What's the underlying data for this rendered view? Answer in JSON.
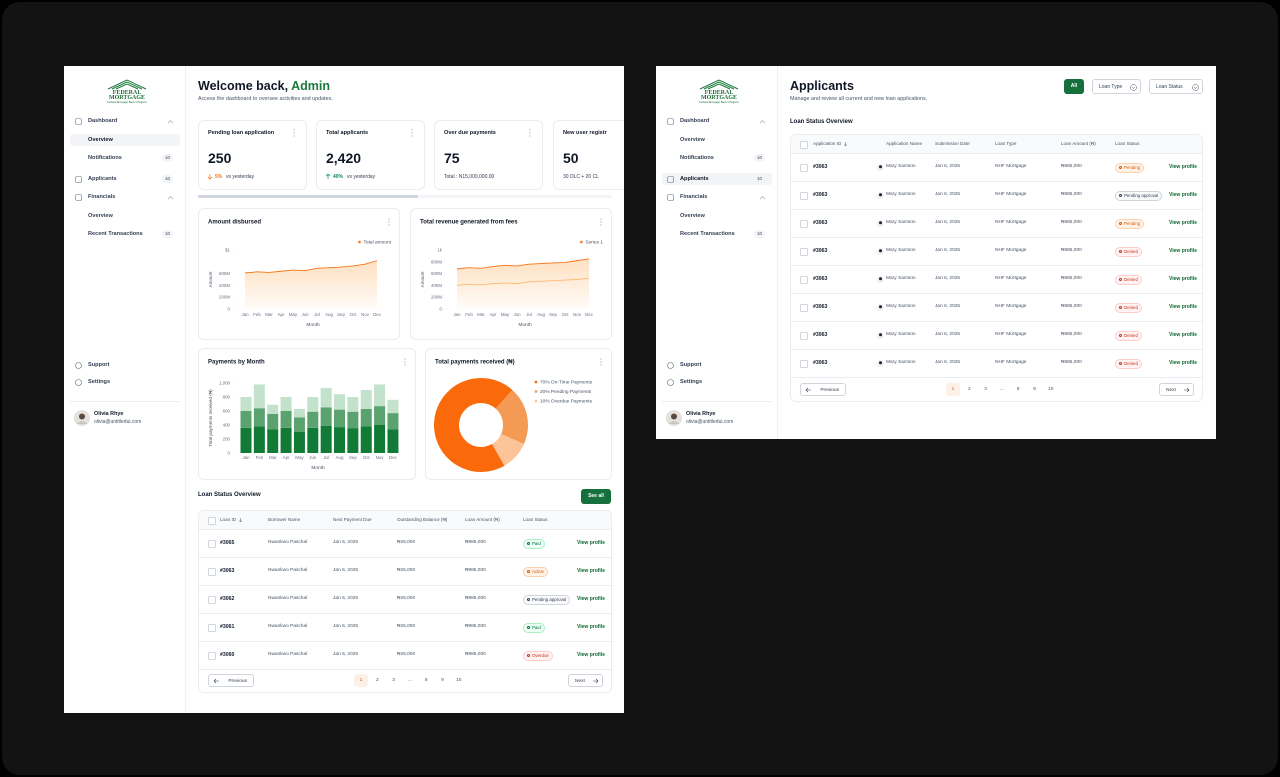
{
  "sidebar": {
    "logo": {
      "line1": "FEDERAL",
      "line2": "MORTGAGE",
      "tagline": "Federal Mortgage Bank of Nigeria"
    },
    "nav": [
      {
        "label": "Dashboard",
        "expanded": true
      },
      {
        "label": "Overview",
        "sub": true
      },
      {
        "label": "Notifications",
        "sub": true,
        "badge": 10
      },
      {
        "label": "Applicants",
        "badge": 10
      },
      {
        "label": "Financials",
        "expanded": true
      },
      {
        "label": "Overview",
        "sub": true
      },
      {
        "label": "Recent Transactions",
        "sub": true,
        "badge": 10
      }
    ],
    "footer_nav": [
      "Support",
      "Settings"
    ],
    "user": {
      "name": "Olivia Rhye",
      "email": "olivia@untitledui.com"
    }
  },
  "dashboard": {
    "active_nav": 1,
    "header": {
      "greeting": "Welcome back, ",
      "name": "Admin",
      "subtitle": "Access the dashboard to oversee activities and updates."
    },
    "stats": [
      {
        "label": "Pending loan application",
        "value": "250",
        "change": "5%",
        "trend": "down",
        "note": "vs yesterday"
      },
      {
        "label": "Total applicants",
        "value": "2,420",
        "change": "40%",
        "trend": "up",
        "note": "vs yesterday"
      },
      {
        "label": "Over due payments",
        "value": "75",
        "note": "Total : N15,000,000.00"
      },
      {
        "label": "New user registr",
        "value": "50",
        "note": "30 DLC  + 20 CL"
      }
    ],
    "amount_chart": {
      "type": "line",
      "title": "Amount disbursed",
      "ylabel": "Amount",
      "xlabel": "Month",
      "categories": [
        "Jan",
        "Feb",
        "Mar",
        "Apr",
        "May",
        "Jun",
        "Jul",
        "Aug",
        "Sep",
        "Oct",
        "Nov",
        "Dec"
      ],
      "ylim": [
        0,
        1000
      ],
      "yticks": [
        0,
        {
          "value": 200,
          "label": "200M"
        },
        {
          "value": 400,
          "label": "400M"
        },
        {
          "value": 600,
          "label": "600M"
        },
        {
          "value": 1000,
          "label": "$1"
        }
      ],
      "series": [
        {
          "name": "Total amount",
          "color": "#f97316",
          "area": true,
          "values": [
            610,
            630,
            620,
            640,
            660,
            650,
            690,
            700,
            710,
            730,
            760,
            820
          ]
        }
      ]
    },
    "revenue_chart": {
      "type": "line",
      "title": "Total revenue generated from fees",
      "ylabel": "Amount",
      "xlabel": "Month",
      "categories": [
        "Jan",
        "Feb",
        "Mar",
        "Apr",
        "May",
        "Jun",
        "Jul",
        "Aug",
        "Sep",
        "Oct",
        "Nov",
        "Dec"
      ],
      "ylim": [
        0,
        1000
      ],
      "yticks": [
        0,
        {
          "value": 200,
          "label": "200M"
        },
        {
          "value": 400,
          "label": "400M"
        },
        {
          "value": 600,
          "label": "600M"
        },
        {
          "value": 800,
          "label": "800M"
        },
        {
          "value": 1000,
          "label": "1k"
        }
      ],
      "series": [
        {
          "name": "Series 1",
          "color": "#f97316",
          "area": true,
          "values": [
            680,
            700,
            690,
            720,
            740,
            730,
            760,
            770,
            780,
            790,
            820,
            850
          ]
        },
        {
          "color": "#fdba74",
          "values": [
            400,
            420,
            410,
            430,
            440,
            430,
            460,
            470,
            480,
            490,
            500,
            520
          ]
        }
      ]
    },
    "payments_chart": {
      "type": "bar",
      "stacked": true,
      "title": "Payments by Month",
      "ylabel": "Total payments received (₦)",
      "xlabel": "Month",
      "categories": [
        "Jan",
        "Feb",
        "Mar",
        "Apr",
        "May",
        "Jun",
        "Jul",
        "Aug",
        "Sep",
        "Oct",
        "Nov",
        "Dec"
      ],
      "ylim": [
        0,
        1000
      ],
      "yticks": [
        0,
        200,
        400,
        600,
        800,
        {
          "value": 1000,
          "label": "1,000"
        }
      ],
      "series": [
        {
          "color": "#117a35",
          "values": [
            360,
            380,
            340,
            360,
            300,
            360,
            390,
            370,
            350,
            380,
            400,
            340
          ]
        },
        {
          "color": "#5aa36e",
          "values": [
            240,
            260,
            220,
            240,
            210,
            230,
            260,
            250,
            240,
            250,
            270,
            230
          ]
        },
        {
          "color": "#c3e2cb",
          "values": [
            200,
            340,
            130,
            200,
            120,
            210,
            280,
            220,
            210,
            270,
            310,
            190
          ]
        }
      ]
    },
    "donut_chart": {
      "type": "pie",
      "donut": true,
      "title": "Total payments received (₦)",
      "labels": [
        "70% On-Time Payments",
        "20% Pending Payments",
        "10% Overdue Payments"
      ],
      "values": [
        70,
        20,
        10
      ],
      "colors": [
        "#fb6a0a",
        "#f59a55",
        "#fdc49a"
      ]
    },
    "loan_table": {
      "title": "Loan Status Overview",
      "action": "See all",
      "columns": [
        "Loan ID",
        "Borrower Name",
        "Next Payment Due",
        "Outstanding Balance (₦)",
        "Loan Amount (₦)",
        "Loan Status"
      ],
      "rows": [
        {
          "cells": [
            "#3065",
            "Nwankwo Paschal",
            "Jan 6, 2025",
            "₦25,000",
            "₦985,000"
          ],
          "status": {
            "label": "Paid",
            "tone": "success"
          }
        },
        {
          "cells": [
            "#3063",
            "Nwankwo Paschal",
            "Jan 6, 2025",
            "₦25,000",
            "₦985,000"
          ],
          "status": {
            "label": "Active",
            "tone": "warning"
          }
        },
        {
          "cells": [
            "#3062",
            "Nwankwo Paschal",
            "Jan 6, 2025",
            "₦25,000",
            "₦985,000"
          ],
          "status": {
            "label": "Pending approval",
            "tone": "neutral"
          }
        },
        {
          "cells": [
            "#3061",
            "Nwankwo Paschal",
            "Jan 6, 2025",
            "₦25,000",
            "₦985,000"
          ],
          "status": {
            "label": "Paid",
            "tone": "success"
          }
        },
        {
          "cells": [
            "#3060",
            "Nwankwo Paschal",
            "Jan 6, 2025",
            "₦25,000",
            "₦985,000"
          ],
          "status": {
            "label": "Overdue",
            "tone": "error"
          }
        }
      ],
      "row_action": "View profile",
      "pagination": {
        "previous": "Previous",
        "pages": [
          "1",
          "2",
          "3",
          "...",
          "8",
          "9",
          "10"
        ],
        "current": 0,
        "next": "Next"
      }
    }
  },
  "applicants": {
    "active_nav": 3,
    "header": {
      "title": "Applicants",
      "subtitle": "Manage and review all current and new loan applications."
    },
    "filters": [
      {
        "label": "All",
        "active": true
      },
      {
        "label": "Loan Type"
      },
      {
        "label": "Loan Status"
      }
    ],
    "table": {
      "title": "Loan Status Overview",
      "columns": [
        "Application ID",
        "Application Name",
        "Submission Date",
        "Loan Type",
        "Loan Amount (₦)",
        "Loan Status"
      ],
      "rows": [
        {
          "cells": [
            "#3063",
            "Mary Samson",
            "Jan 6, 2025",
            "NHF Mortgage",
            "₦985,000"
          ],
          "status": {
            "label": "Pending",
            "tone": "warning"
          }
        },
        {
          "cells": [
            "#3063",
            "Mary Samson",
            "Jan 6, 2025",
            "NHF Mortgage",
            "₦985,000"
          ],
          "status": {
            "label": "Pending approval",
            "tone": "neutral"
          }
        },
        {
          "cells": [
            "#3063",
            "Mary Samson",
            "Jan 6, 2025",
            "NHF Mortgage",
            "₦985,000"
          ],
          "status": {
            "label": "Pending",
            "tone": "warning"
          }
        },
        {
          "cells": [
            "#3063",
            "Mary Samson",
            "Jan 6, 2025",
            "NHF Mortgage",
            "₦985,000"
          ],
          "status": {
            "label": "Denied",
            "tone": "error"
          }
        },
        {
          "cells": [
            "#3063",
            "Mary Samson",
            "Jan 6, 2025",
            "NHF Mortgage",
            "₦985,000"
          ],
          "status": {
            "label": "Denied",
            "tone": "error"
          }
        },
        {
          "cells": [
            "#3063",
            "Mary Samson",
            "Jan 6, 2025",
            "NHF Mortgage",
            "₦985,000"
          ],
          "status": {
            "label": "Denied",
            "tone": "error"
          }
        },
        {
          "cells": [
            "#3063",
            "Mary Samson",
            "Jan 6, 2025",
            "NHF Mortgage",
            "₦985,000"
          ],
          "status": {
            "label": "Denied",
            "tone": "error"
          }
        },
        {
          "cells": [
            "#3063",
            "Mary Samson",
            "Jan 6, 2025",
            "NHF Mortgage",
            "₦985,000"
          ],
          "status": {
            "label": "Denied",
            "tone": "error"
          }
        }
      ],
      "row_action": "View profile",
      "pagination": {
        "previous": "Previous",
        "pages": [
          "1",
          "2",
          "3",
          "...",
          "8",
          "9",
          "10"
        ],
        "current": 0,
        "next": "Next"
      }
    }
  }
}
